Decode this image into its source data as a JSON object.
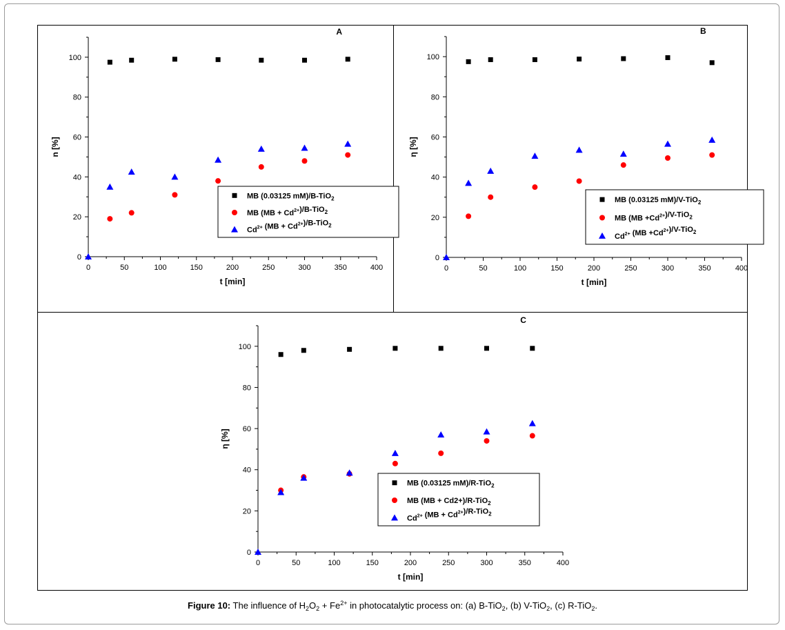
{
  "caption": {
    "label": "Figure 10:",
    "parts": [
      {
        "t": " The influence of H"
      },
      {
        "sub": "2"
      },
      {
        "t": "O"
      },
      {
        "sub": "2"
      },
      {
        "t": " + Fe"
      },
      {
        "sup": "2+"
      },
      {
        "t": " in photocatalytic process on: (a) B-TiO"
      },
      {
        "sub": "2"
      },
      {
        "t": ", (b) V-TiO"
      },
      {
        "sub": "2"
      },
      {
        "t": ", (c) R-TiO"
      },
      {
        "sub": "2"
      },
      {
        "t": "."
      }
    ]
  },
  "colors": {
    "black": "#000000",
    "red": "#ff0000",
    "blue": "#0000ff"
  },
  "chart_data": [
    {
      "id": "A",
      "type": "scatter",
      "panel_label": "A",
      "xlabel": "t [min]",
      "ylabel": "n [%]",
      "xlim": [
        0,
        400
      ],
      "ylim": [
        0,
        110
      ],
      "xticks": [
        0,
        50,
        100,
        150,
        200,
        250,
        300,
        350,
        400
      ],
      "yticks": [
        0,
        20,
        40,
        60,
        80,
        100
      ],
      "legend_position": "lower-right",
      "series": [
        {
          "name": [
            {
              "t": "MB (0.03125 mM)/B-TiO"
            },
            {
              "sub": "2"
            }
          ],
          "marker": "square",
          "color": "#000000",
          "x": [
            30,
            60,
            120,
            180,
            240,
            300,
            360
          ],
          "y": [
            97.5,
            98.5,
            99,
            98.8,
            98.5,
            98.5,
            99
          ]
        },
        {
          "name": [
            {
              "t": "MB (MB + Cd"
            },
            {
              "sup": "2+"
            },
            {
              "t": ")/B-TiO"
            },
            {
              "sub": "2"
            }
          ],
          "marker": "circle",
          "color": "#ff0000",
          "x": [
            30,
            60,
            120,
            180,
            240,
            300,
            360
          ],
          "y": [
            19,
            22,
            31,
            38,
            45,
            48,
            51
          ]
        },
        {
          "name": [
            {
              "t": "Cd"
            },
            {
              "sup": "2+"
            },
            {
              "t": " (MB + Cd"
            },
            {
              "sup": "2+"
            },
            {
              "t": ")/B-TiO"
            },
            {
              "sub": "2"
            }
          ],
          "marker": "triangle",
          "color": "#0000ff",
          "x": [
            0,
            30,
            60,
            120,
            180,
            240,
            300,
            360
          ],
          "y": [
            0,
            35,
            42.5,
            40,
            48.5,
            54,
            54.5,
            56.5
          ]
        }
      ]
    },
    {
      "id": "B",
      "type": "scatter",
      "panel_label": "B",
      "xlabel": "t [min]",
      "ylabel": "η [%]",
      "xlim": [
        0,
        400
      ],
      "ylim": [
        0,
        110
      ],
      "xticks": [
        0,
        50,
        100,
        150,
        200,
        250,
        300,
        350,
        400
      ],
      "yticks": [
        0,
        20,
        40,
        60,
        80,
        100
      ],
      "legend_position": "lower-right",
      "series": [
        {
          "name": [
            {
              "t": "MB (0.03125 mM)/V-TiO"
            },
            {
              "sub": "2"
            }
          ],
          "marker": "square",
          "color": "#000000",
          "x": [
            30,
            60,
            120,
            180,
            240,
            300,
            360
          ],
          "y": [
            97.5,
            98.5,
            98.5,
            98.8,
            99,
            99.5,
            97
          ]
        },
        {
          "name": [
            {
              "t": "MB (MB +Cd"
            },
            {
              "sup": "2+"
            },
            {
              "t": ")/V-TiO"
            },
            {
              "sub": "2"
            }
          ],
          "marker": "circle",
          "color": "#ff0000",
          "x": [
            30,
            60,
            120,
            180,
            240,
            300,
            360
          ],
          "y": [
            20.5,
            30,
            35,
            38,
            46,
            49.5,
            51
          ]
        },
        {
          "name": [
            {
              "t": "Cd"
            },
            {
              "sup": "2+"
            },
            {
              "t": " (MB +Cd"
            },
            {
              "sup": "2+"
            },
            {
              "t": ")/V-TiO"
            },
            {
              "sub": "2"
            }
          ],
          "marker": "triangle",
          "color": "#0000ff",
          "x": [
            0,
            30,
            60,
            120,
            180,
            240,
            300,
            360
          ],
          "y": [
            0,
            37,
            43,
            50.5,
            53.5,
            51.5,
            56.5,
            58.5
          ]
        }
      ]
    },
    {
      "id": "C",
      "type": "scatter",
      "panel_label": "C",
      "xlabel": "t [min]",
      "ylabel": "η [%]",
      "xlim": [
        0,
        400
      ],
      "ylim": [
        0,
        110
      ],
      "xticks": [
        0,
        50,
        100,
        150,
        200,
        250,
        300,
        350,
        400
      ],
      "yticks": [
        0,
        20,
        40,
        60,
        80,
        100
      ],
      "legend_position": "lower-right",
      "series": [
        {
          "name": [
            {
              "t": "MB (0.03125 mM)/R-TiO"
            },
            {
              "sub": "2"
            }
          ],
          "marker": "square",
          "color": "#000000",
          "x": [
            30,
            60,
            120,
            180,
            240,
            300,
            360
          ],
          "y": [
            96,
            98,
            98.5,
            99,
            99,
            99,
            99
          ]
        },
        {
          "name": [
            {
              "t": "MB (MB + Cd2+)/R-TiO"
            },
            {
              "sub": "2"
            }
          ],
          "marker": "circle",
          "color": "#ff0000",
          "x": [
            30,
            60,
            120,
            180,
            240,
            300,
            360
          ],
          "y": [
            30,
            36.5,
            38,
            43,
            48,
            54,
            56.5
          ]
        },
        {
          "name": [
            {
              "t": "Cd"
            },
            {
              "sup": "2+"
            },
            {
              "t": " (MB + Cd"
            },
            {
              "sup": "2+"
            },
            {
              "t": ")/R-TiO"
            },
            {
              "sub": "2"
            }
          ],
          "marker": "triangle",
          "color": "#0000ff",
          "x": [
            0,
            30,
            60,
            120,
            180,
            240,
            300,
            360
          ],
          "y": [
            0,
            29,
            36,
            38.5,
            48,
            57,
            58.5,
            62.5
          ]
        }
      ]
    }
  ]
}
